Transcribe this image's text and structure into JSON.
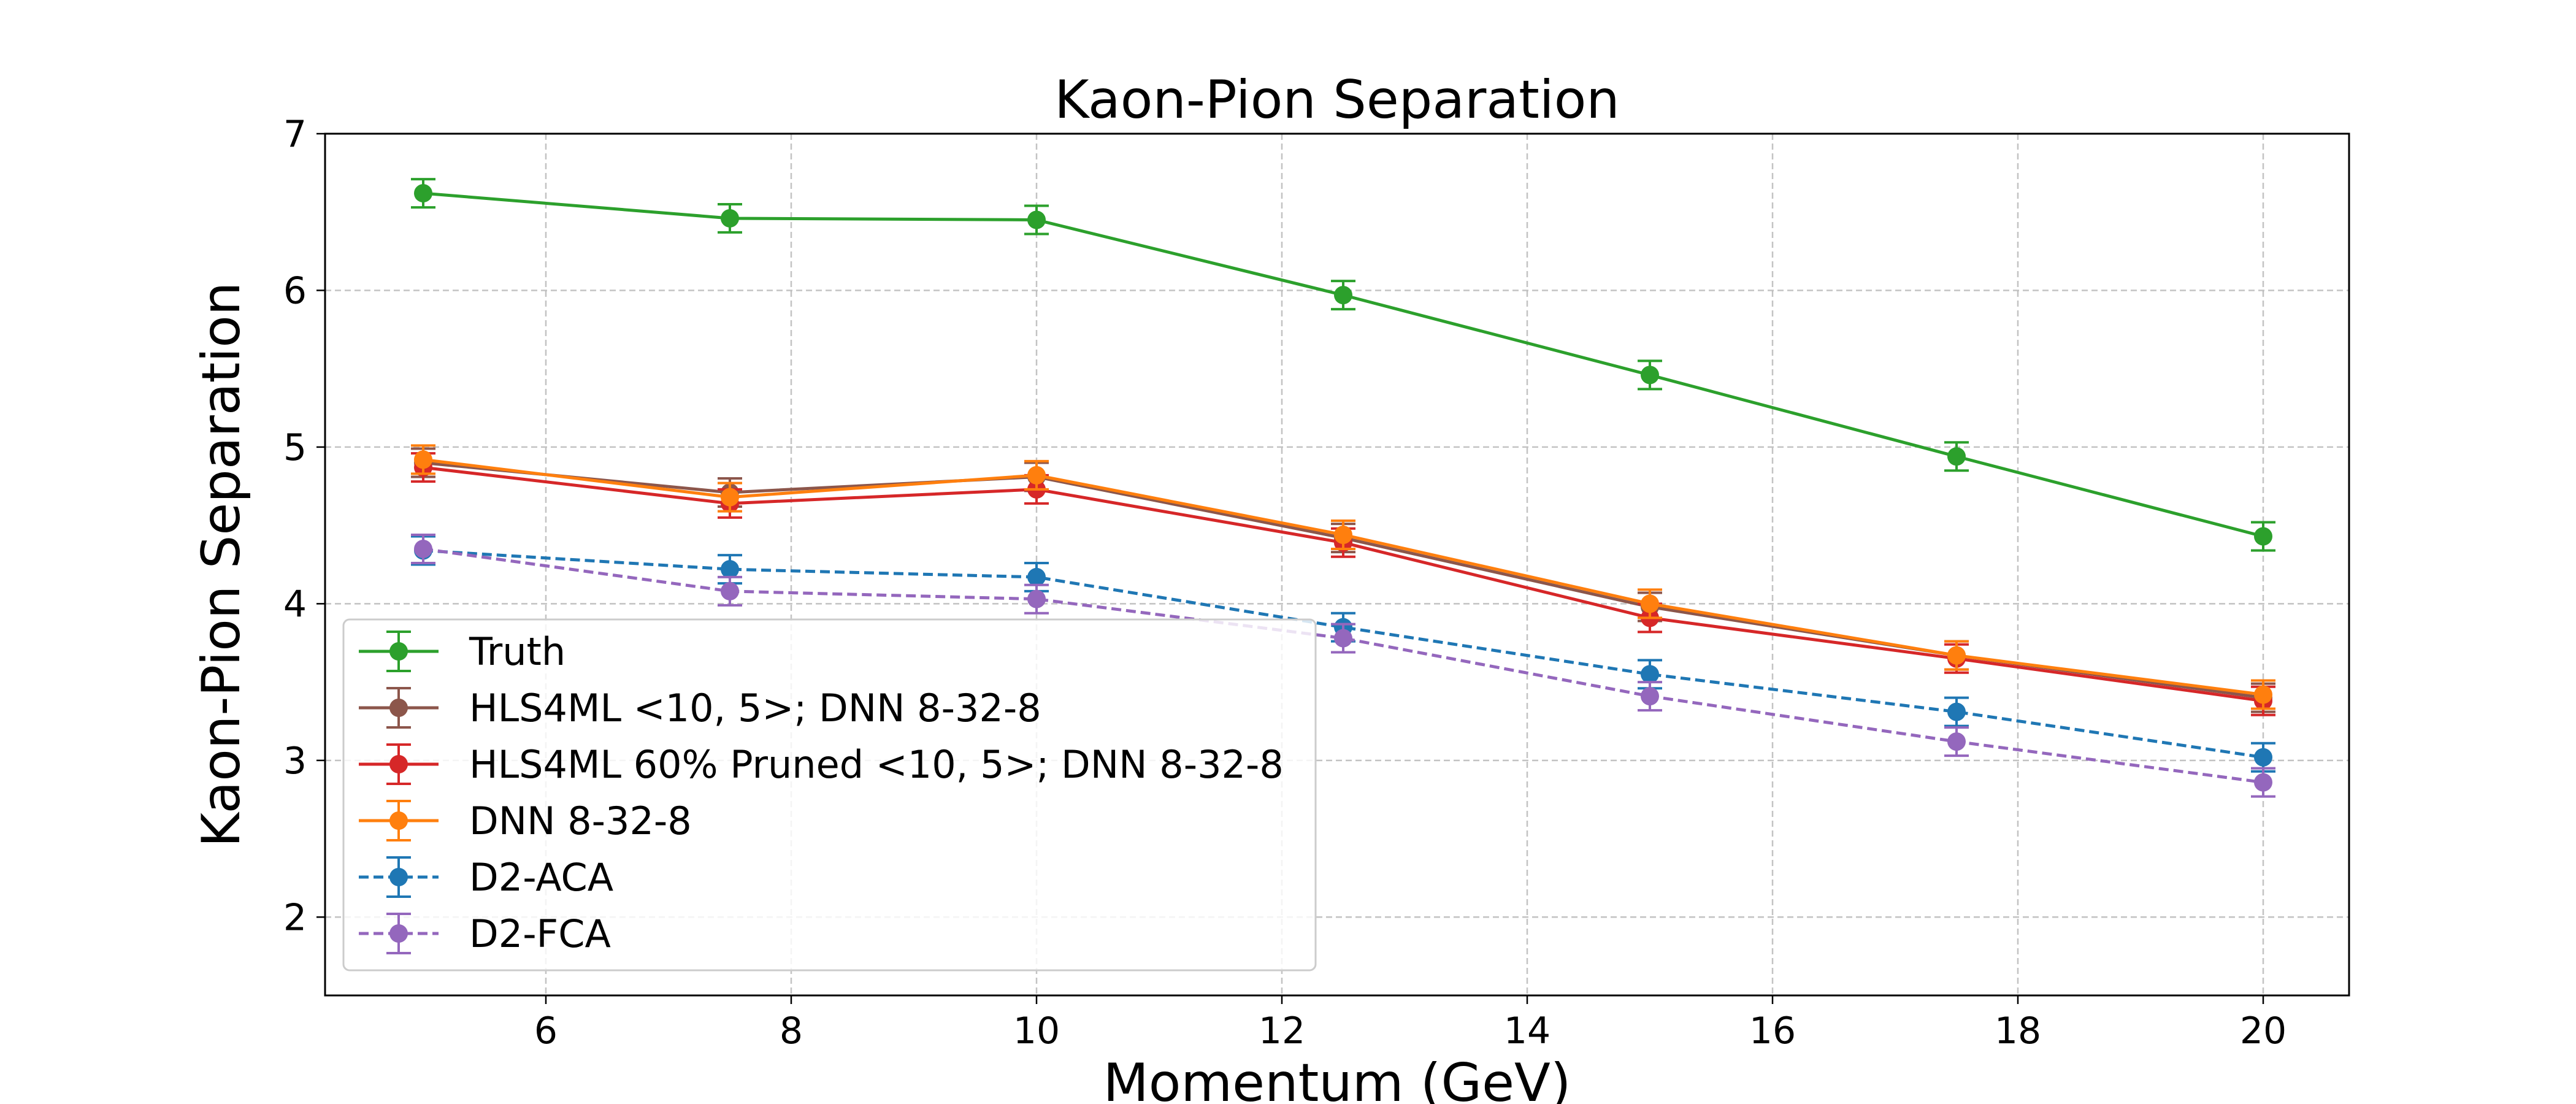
{
  "chart_data": {
    "type": "line",
    "title": "Kaon-Pion Separation",
    "xlabel": "Momentum (GeV)",
    "ylabel": "Kaon-Pion Separation",
    "xlim": [
      4.2,
      20.7
    ],
    "ylim": [
      1.5,
      7.0
    ],
    "xticks": [
      6,
      8,
      10,
      12,
      14,
      16,
      18,
      20
    ],
    "yticks": [
      2,
      3,
      4,
      5,
      6,
      7
    ],
    "grid": true,
    "legend_position": "lower-left",
    "x": [
      5,
      7.5,
      10,
      12.5,
      15,
      17.5,
      20
    ],
    "series": [
      {
        "name": "Truth",
        "color": "#2ca02c",
        "dashed": false,
        "values": [
          6.62,
          6.46,
          6.45,
          5.97,
          5.46,
          4.94,
          4.43
        ],
        "errors": [
          0.09,
          0.09,
          0.09,
          0.09,
          0.09,
          0.09,
          0.09
        ]
      },
      {
        "name": "HLS4ML <10, 5>; DNN 8-32-8",
        "color": "#8c564b",
        "dashed": false,
        "values": [
          4.9,
          4.71,
          4.81,
          4.42,
          3.98,
          3.67,
          3.4
        ],
        "errors": [
          0.09,
          0.09,
          0.09,
          0.09,
          0.09,
          0.09,
          0.09
        ]
      },
      {
        "name": "HLS4ML 60% Pruned <10, 5>; DNN 8-32-8",
        "color": "#d62728",
        "dashed": false,
        "values": [
          4.87,
          4.64,
          4.73,
          4.39,
          3.91,
          3.65,
          3.38
        ],
        "errors": [
          0.09,
          0.09,
          0.09,
          0.09,
          0.09,
          0.09,
          0.09
        ]
      },
      {
        "name": "DNN 8-32-8",
        "color": "#ff7f0e",
        "dashed": false,
        "values": [
          4.92,
          4.68,
          4.82,
          4.44,
          4.0,
          3.67,
          3.42
        ],
        "errors": [
          0.09,
          0.09,
          0.09,
          0.09,
          0.09,
          0.09,
          0.09
        ]
      },
      {
        "name": "D2-ACA",
        "color": "#1f77b4",
        "dashed": true,
        "values": [
          4.34,
          4.22,
          4.17,
          3.85,
          3.55,
          3.31,
          3.02
        ],
        "errors": [
          0.09,
          0.09,
          0.09,
          0.09,
          0.09,
          0.09,
          0.09
        ]
      },
      {
        "name": "D2-FCA",
        "color": "#9467bd",
        "dashed": true,
        "values": [
          4.35,
          4.08,
          4.03,
          3.78,
          3.41,
          3.12,
          2.86
        ],
        "errors": [
          0.09,
          0.09,
          0.09,
          0.09,
          0.09,
          0.09,
          0.09
        ]
      }
    ]
  }
}
